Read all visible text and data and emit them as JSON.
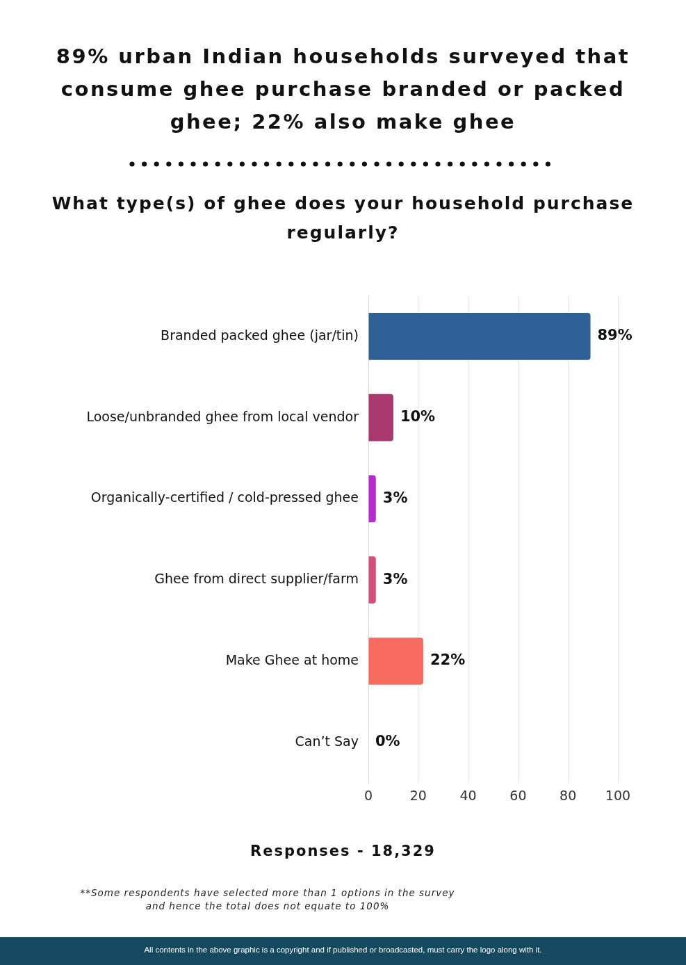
{
  "chart_data": {
    "type": "bar",
    "orientation": "horizontal",
    "title": "89% urban Indian households surveyed that consume ghee purchase branded or packed ghee; 22% also make ghee",
    "subtitle": "What type(s) of ghee does your household purchase regularly?",
    "categories": [
      "Branded packed ghee (jar/tin)",
      "Loose/unbranded ghee from local vendor",
      "Organically-certified / cold-pressed ghee",
      "Ghee from direct supplier/farm",
      "Make Ghee at home",
      "Can’t Say"
    ],
    "values": [
      89,
      10,
      3,
      3,
      22,
      0
    ],
    "colors": [
      "#2e5f95",
      "#a8386e",
      "#b72ad0",
      "#d4507a",
      "#f76a5e",
      "#c0c0c0"
    ],
    "value_labels": [
      "89%",
      "10%",
      "3%",
      "3%",
      "22%",
      "0%"
    ],
    "xlim": [
      0,
      100
    ],
    "xticks": [
      0,
      20,
      40,
      60,
      80,
      100
    ],
    "grid": "x",
    "legend": false,
    "annotations": [
      "Responses - 18,329",
      "**Some respondents have selected more than 1 options in the survey and hence the total does not equate to 100%",
      "All contents in the above graphic is a copyright and if published or broadcasted, must carry the logo along with it."
    ]
  }
}
